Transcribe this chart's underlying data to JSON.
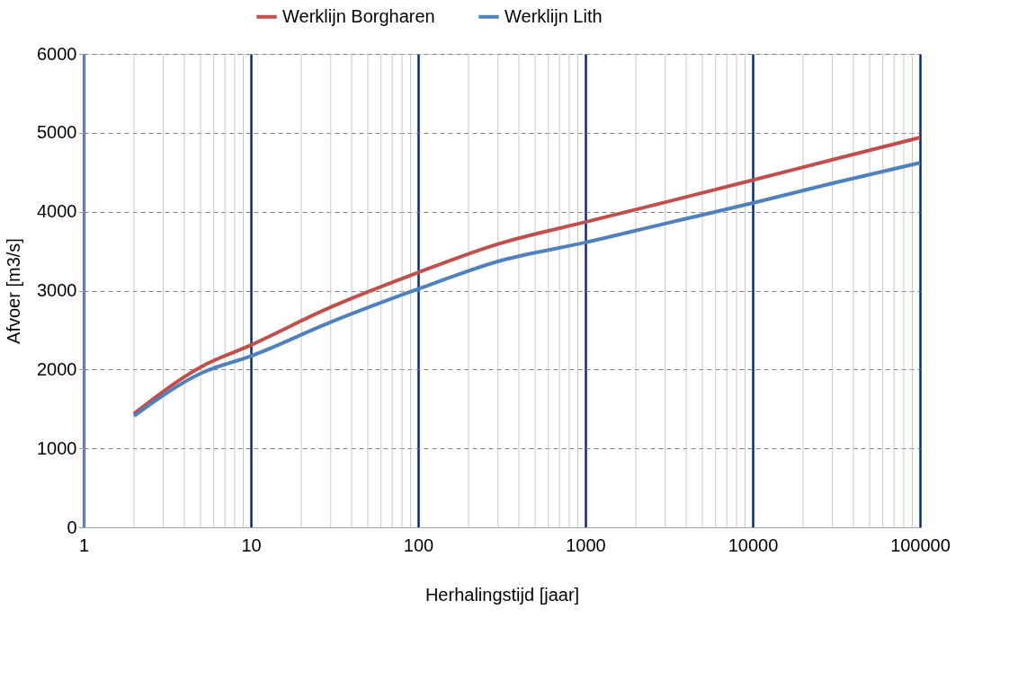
{
  "chart_data": {
    "type": "line",
    "xlabel": "Herhalingstijd  [jaar]",
    "ylabel": "Afvoer [m3/s]",
    "x": [
      2,
      5,
      10,
      30,
      100,
      300,
      1000,
      3000,
      10000,
      30000,
      100000
    ],
    "series": [
      {
        "name": "Werklijn Borgharen",
        "color": "#c0504d",
        "values": [
          1440,
          2030,
          2310,
          2790,
          3230,
          3590,
          3870,
          4120,
          4400,
          4660,
          4940
        ]
      },
      {
        "name": "Werklijn Lith",
        "color": "#4f81bd",
        "values": [
          1410,
          1950,
          2170,
          2600,
          3020,
          3370,
          3610,
          3850,
          4110,
          4360,
          4620
        ]
      }
    ],
    "log": "x",
    "xlim": [
      1,
      100000
    ],
    "xticks": [
      1,
      10,
      100,
      1000,
      10000,
      100000
    ],
    "ylim": [
      0,
      6000
    ],
    "yticks": [
      0,
      1000,
      2000,
      3000,
      4000,
      5000,
      6000
    ],
    "grid": true,
    "legend": "top",
    "marker": "none",
    "line_style": "solid"
  }
}
